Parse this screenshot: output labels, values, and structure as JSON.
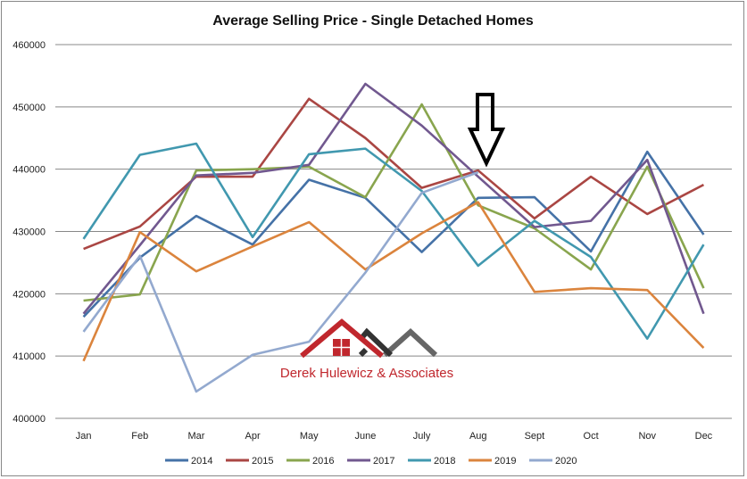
{
  "chart_data": {
    "type": "line",
    "title": "Average Selling Price - Single Detached Homes",
    "xlabel": "",
    "ylabel": "",
    "categories": [
      "Jan",
      "Feb",
      "Mar",
      "Apr",
      "May",
      "June",
      "July",
      "Aug",
      "Sept",
      "Oct",
      "Nov",
      "Dec"
    ],
    "ylim": [
      400000,
      460000
    ],
    "yticks": [
      "400000",
      "410000",
      "420000",
      "430000",
      "440000",
      "450000",
      "460000"
    ],
    "grid": true,
    "legend": "bottom",
    "series": [
      {
        "name": "2014",
        "color": "#4572a7",
        "values": [
          416300,
          425800,
          432500,
          427900,
          438300,
          435400,
          426700,
          435400,
          435500,
          426800,
          442800,
          429500
        ]
      },
      {
        "name": "2015",
        "color": "#aa4643",
        "values": [
          427200,
          430800,
          438800,
          438800,
          451300,
          445000,
          437000,
          439800,
          432100,
          438800,
          432800,
          437500
        ]
      },
      {
        "name": "2016",
        "color": "#89a54e",
        "values": [
          418900,
          419900,
          439800,
          440000,
          440400,
          435500,
          450400,
          434200,
          430500,
          423900,
          440400,
          420900
        ]
      },
      {
        "name": "2017",
        "color": "#71588f",
        "values": [
          416800,
          427800,
          439000,
          439400,
          440700,
          453700,
          447000,
          438800,
          430700,
          431700,
          441500,
          416800
        ]
      },
      {
        "name": "2018",
        "color": "#4198af",
        "values": [
          428800,
          442300,
          444100,
          429100,
          442400,
          443300,
          436500,
          424500,
          431700,
          425900,
          412800,
          427900
        ]
      },
      {
        "name": "2019",
        "color": "#db843d",
        "values": [
          409200,
          429900,
          423600,
          427600,
          431500,
          423900,
          429700,
          434700,
          420300,
          420900,
          420600,
          411300
        ]
      },
      {
        "name": "2020",
        "color": "#93a9cf",
        "values": [
          413900,
          426100,
          404300,
          410200,
          412300,
          423400,
          436200,
          439500,
          null,
          null,
          null,
          null
        ]
      }
    ],
    "annotations": [
      "down-arrow-at-Aug"
    ]
  },
  "logo": {
    "text": "Derek Hulewicz & Associates",
    "color": "#c0272d"
  }
}
